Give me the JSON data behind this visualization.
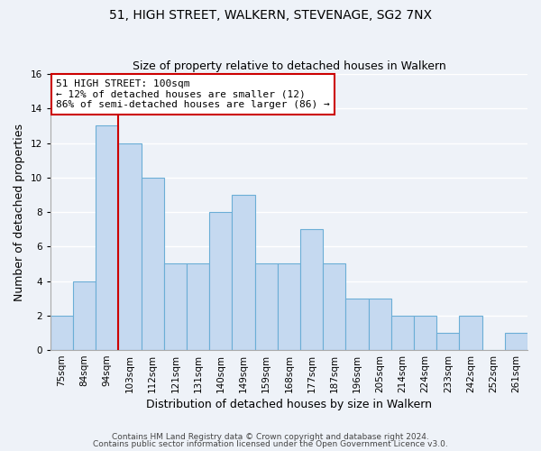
{
  "title": "51, HIGH STREET, WALKERN, STEVENAGE, SG2 7NX",
  "subtitle": "Size of property relative to detached houses in Walkern",
  "xlabel": "Distribution of detached houses by size in Walkern",
  "ylabel": "Number of detached properties",
  "bin_labels": [
    "75sqm",
    "84sqm",
    "94sqm",
    "103sqm",
    "112sqm",
    "121sqm",
    "131sqm",
    "140sqm",
    "149sqm",
    "159sqm",
    "168sqm",
    "177sqm",
    "187sqm",
    "196sqm",
    "205sqm",
    "214sqm",
    "224sqm",
    "233sqm",
    "242sqm",
    "252sqm",
    "261sqm"
  ],
  "bar_heights": [
    2,
    4,
    13,
    12,
    10,
    5,
    5,
    8,
    9,
    5,
    5,
    7,
    5,
    3,
    3,
    2,
    2,
    1,
    2,
    0,
    1
  ],
  "bar_color": "#c5d9f0",
  "bar_edge_color": "#6baed6",
  "vline_after_index": 2,
  "vline_color": "#cc0000",
  "ylim": [
    0,
    16
  ],
  "yticks": [
    0,
    2,
    4,
    6,
    8,
    10,
    12,
    14,
    16
  ],
  "annotation_title": "51 HIGH STREET: 100sqm",
  "annotation_line1": "← 12% of detached houses are smaller (12)",
  "annotation_line2": "86% of semi-detached houses are larger (86) →",
  "annotation_box_facecolor": "#ffffff",
  "annotation_box_edgecolor": "#cc0000",
  "footer_line1": "Contains HM Land Registry data © Crown copyright and database right 2024.",
  "footer_line2": "Contains public sector information licensed under the Open Government Licence v3.0.",
  "background_color": "#eef2f8",
  "grid_color": "#ffffff",
  "title_fontsize": 10,
  "subtitle_fontsize": 9,
  "axis_label_fontsize": 9,
  "tick_fontsize": 7.5,
  "footer_fontsize": 6.5,
  "annotation_fontsize": 8
}
